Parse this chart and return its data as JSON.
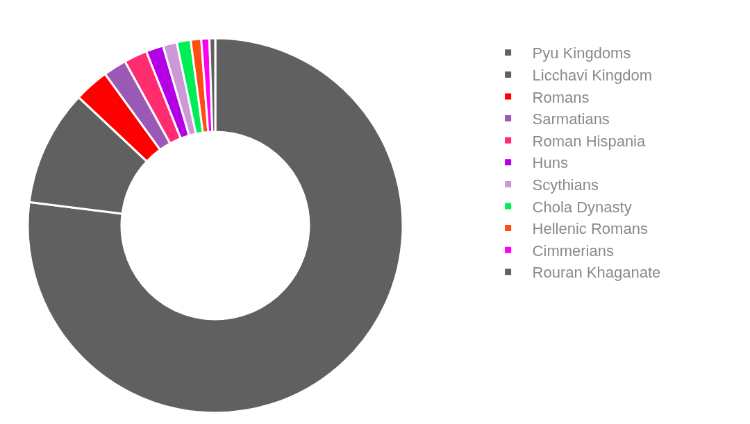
{
  "chart_data": {
    "type": "donut",
    "categories": [
      "Pyu Kingdoms",
      "Licchavi Kingdom",
      "Romans",
      "Sarmatians",
      "Roman Hispania",
      "Huns",
      "Scythians",
      "Chola Dynasty",
      "Hellenic Romans",
      "Cimmerians",
      "Rouran Khaganate"
    ],
    "values": [
      77,
      10,
      3,
      2,
      2,
      1.5,
      1.2,
      1.2,
      0.9,
      0.7,
      0.5
    ],
    "colors": [
      "#606060",
      "#606060",
      "#ff0000",
      "#9b59b6",
      "#ff2d6f",
      "#b300e6",
      "#cc99d6",
      "#00ee55",
      "#ff4c14",
      "#ff00f0",
      "#606060"
    ],
    "legend": "right"
  }
}
